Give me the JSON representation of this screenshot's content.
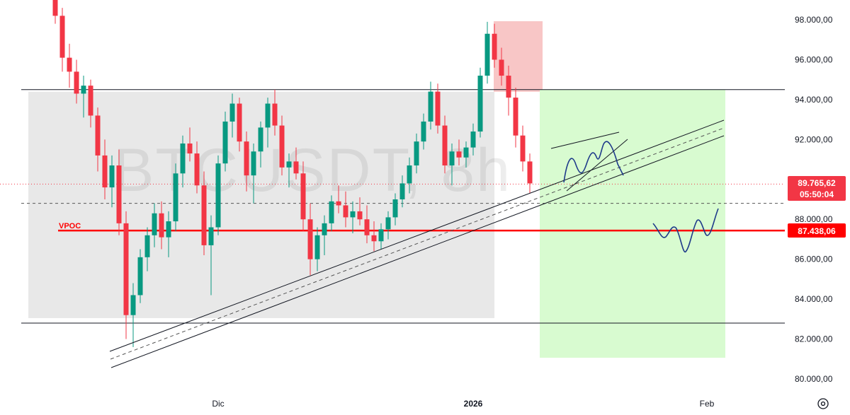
{
  "symbol_watermark": "BTCUSDT, 8h",
  "colors": {
    "up": "#089981",
    "down": "#f23645",
    "vpoc_line": "#ff0000",
    "last_price_tag": "#f23645",
    "range_box": "#e8e8e8",
    "red_zone": "#f8c6c6",
    "target_zone": "#d8fbd0",
    "projection": "#1e3a8a"
  },
  "chart_data": {
    "type": "candlestick",
    "title": "BTCUSDT, 8h",
    "y_axis": {
      "min": 79500,
      "max": 99500,
      "ticks": [
        80000,
        82000,
        84000,
        86000,
        88000,
        90000,
        92000,
        94000,
        96000,
        98000
      ],
      "tick_labels": [
        "80.000,00",
        "82.000,00",
        "84.000,00",
        "86.000,00",
        "88.000,00",
        "90.000,00",
        "92.000,00",
        "94.000,00",
        "96.000,00",
        "98.000,00"
      ]
    },
    "x_axis": {
      "labels": [
        {
          "text": "Dic",
          "bar": 23,
          "bold": false
        },
        {
          "text": "2026",
          "bar": 59,
          "bold": true
        },
        {
          "text": "Feb",
          "bar": 92,
          "bold": false
        }
      ]
    },
    "series": [
      {
        "name": "BTCUSDT",
        "ohlc": [
          [
            99500,
            99800,
            97800,
            98200
          ],
          [
            98200,
            98600,
            95400,
            96100
          ],
          [
            96100,
            96800,
            94600,
            95400
          ],
          [
            95400,
            96000,
            93800,
            94300
          ],
          [
            94300,
            95200,
            93100,
            94700
          ],
          [
            94700,
            95000,
            92600,
            93200
          ],
          [
            93200,
            93600,
            90400,
            91200
          ],
          [
            91200,
            92000,
            89000,
            89600
          ],
          [
            89600,
            91200,
            88600,
            90700
          ],
          [
            90700,
            91500,
            87200,
            87800
          ],
          [
            87800,
            88400,
            82000,
            83200
          ],
          [
            83200,
            84800,
            81600,
            84200
          ],
          [
            84200,
            86500,
            83800,
            86100
          ],
          [
            86100,
            87600,
            85400,
            87200
          ],
          [
            87200,
            88800,
            86600,
            88300
          ],
          [
            88300,
            88900,
            86500,
            87100
          ],
          [
            87100,
            88400,
            86100,
            87900
          ],
          [
            87900,
            90800,
            87400,
            90300
          ],
          [
            90300,
            92200,
            89600,
            91800
          ],
          [
            91800,
            92600,
            90900,
            91300
          ],
          [
            91300,
            91900,
            89300,
            89700
          ],
          [
            89700,
            90400,
            86200,
            86700
          ],
          [
            86700,
            88200,
            84200,
            87600
          ],
          [
            87600,
            91200,
            87200,
            90800
          ],
          [
            90800,
            93400,
            90400,
            92900
          ],
          [
            92900,
            94300,
            92100,
            93800
          ],
          [
            93800,
            94100,
            91400,
            91900
          ],
          [
            91900,
            92400,
            89400,
            90200
          ],
          [
            90200,
            91800,
            88800,
            91400
          ],
          [
            91400,
            92900,
            90600,
            92600
          ],
          [
            92600,
            94100,
            91600,
            93800
          ],
          [
            93800,
            94500,
            92200,
            92700
          ],
          [
            92700,
            93200,
            90200,
            90600
          ],
          [
            90600,
            91300,
            89600,
            90900
          ],
          [
            90900,
            91600,
            90000,
            90300
          ],
          [
            90300,
            90900,
            87400,
            88000
          ],
          [
            88000,
            88800,
            85200,
            86000
          ],
          [
            86000,
            87600,
            85400,
            87200
          ],
          [
            87200,
            88200,
            86200,
            87800
          ],
          [
            87800,
            89200,
            87400,
            88900
          ],
          [
            88900,
            89700,
            88300,
            88700
          ],
          [
            88700,
            89400,
            87600,
            88100
          ],
          [
            88100,
            88900,
            87300,
            88400
          ],
          [
            88400,
            89100,
            87700,
            88000
          ],
          [
            88000,
            88700,
            86800,
            87200
          ],
          [
            87200,
            87900,
            86400,
            86900
          ],
          [
            86900,
            87800,
            86500,
            87500
          ],
          [
            87500,
            88400,
            87000,
            88100
          ],
          [
            88100,
            89300,
            87700,
            89000
          ],
          [
            89000,
            90200,
            88600,
            89800
          ],
          [
            89800,
            91100,
            89300,
            90700
          ],
          [
            90700,
            92300,
            90300,
            91900
          ],
          [
            91900,
            93300,
            91500,
            92900
          ],
          [
            92900,
            94900,
            92500,
            94400
          ],
          [
            94400,
            94800,
            92300,
            92700
          ],
          [
            92700,
            93200,
            90300,
            90700
          ],
          [
            90700,
            91800,
            89700,
            91400
          ],
          [
            91400,
            92000,
            90700,
            91100
          ],
          [
            91100,
            91900,
            90600,
            91600
          ],
          [
            91600,
            92800,
            91200,
            92400
          ],
          [
            92400,
            95600,
            92100,
            95200
          ],
          [
            95200,
            97900,
            94800,
            97300
          ],
          [
            97300,
            97800,
            95600,
            96000
          ],
          [
            96000,
            96600,
            94700,
            95200
          ],
          [
            95200,
            95700,
            93200,
            94100
          ],
          [
            94100,
            94600,
            91600,
            92200
          ],
          [
            92200,
            92700,
            90400,
            90900
          ],
          [
            90900,
            91300,
            89300,
            89800
          ]
        ]
      }
    ],
    "levels": {
      "range_top": 94500,
      "range_bottom": 82800,
      "dashed_level": 88800,
      "vpoc": 87438.06
    },
    "annotations": {
      "vpoc_label": "VPOC",
      "last_price": "89.765,62",
      "countdown": "05:50:04",
      "vpoc_price": "87.438,06"
    }
  }
}
